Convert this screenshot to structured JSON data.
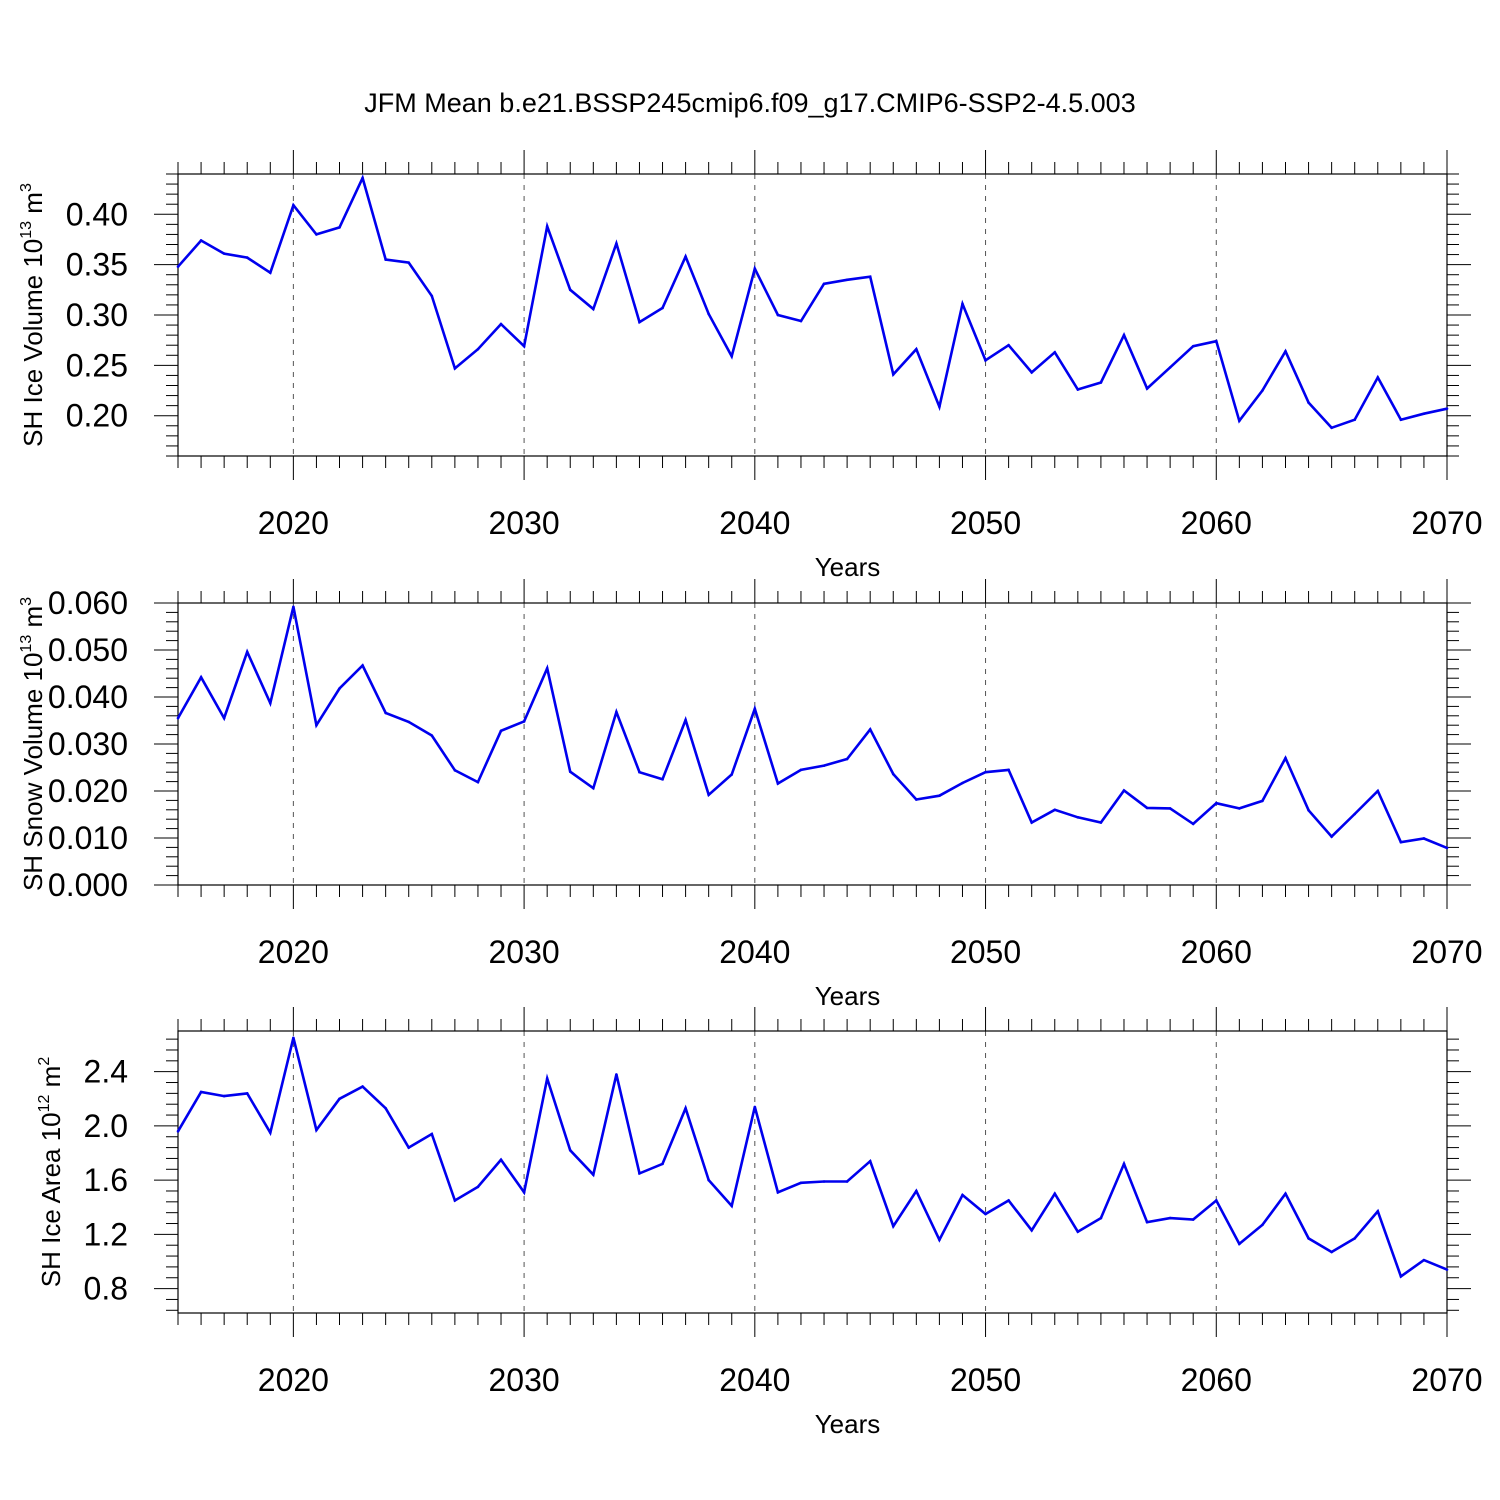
{
  "figure": {
    "title": "JFM Mean b.e21.BSSP245cmip6.f09_g17.CMIP6-SSP2-4.5.003"
  },
  "chart_data": [
    {
      "type": "line",
      "xlabel": "Years",
      "ylabel_prefix": "SH Ice Volume 10",
      "ylabel_exp": "13",
      "ylabel_unit": " m",
      "ylabel_unit_exp": "3",
      "xlim": [
        2015,
        2070
      ],
      "ylim": [
        0.16,
        0.44
      ],
      "x_ticks": [
        2020,
        2030,
        2040,
        2050,
        2060,
        2070
      ],
      "x_tick_labels": [
        "2020",
        "2030",
        "2040",
        "2050",
        "2060",
        "2070"
      ],
      "y_ticks": [
        0.2,
        0.25,
        0.3,
        0.35,
        0.4
      ],
      "y_tick_labels": [
        "0.20",
        "0.25",
        "0.30",
        "0.35",
        "0.40"
      ],
      "grid": "dashed vertical at decades",
      "color": "#0000ee",
      "x": [
        2015,
        2016,
        2017,
        2018,
        2019,
        2020,
        2021,
        2022,
        2023,
        2024,
        2025,
        2026,
        2027,
        2028,
        2029,
        2030,
        2031,
        2032,
        2033,
        2034,
        2035,
        2036,
        2037,
        2038,
        2039,
        2040,
        2041,
        2042,
        2043,
        2044,
        2045,
        2046,
        2047,
        2048,
        2049,
        2050,
        2051,
        2052,
        2053,
        2054,
        2055,
        2056,
        2057,
        2058,
        2059,
        2060,
        2061,
        2062,
        2063,
        2064,
        2065,
        2066,
        2067,
        2068,
        2069,
        2070
      ],
      "values": [
        0.348,
        0.374,
        0.361,
        0.357,
        0.342,
        0.409,
        0.38,
        0.387,
        0.436,
        0.355,
        0.352,
        0.319,
        0.247,
        0.266,
        0.291,
        0.269,
        0.388,
        0.325,
        0.306,
        0.371,
        0.293,
        0.307,
        0.358,
        0.301,
        0.259,
        0.346,
        0.3,
        0.294,
        0.331,
        0.335,
        0.338,
        0.241,
        0.266,
        0.209,
        0.311,
        0.255,
        0.27,
        0.243,
        0.263,
        0.226,
        0.233,
        0.28,
        0.227,
        0.248,
        0.269,
        0.274,
        0.195,
        0.225,
        0.264,
        0.213,
        0.188,
        0.196,
        0.238,
        0.196,
        0.202,
        0.207
      ]
    },
    {
      "type": "line",
      "xlabel": "Years",
      "ylabel_prefix": "SH Snow Volume 10",
      "ylabel_exp": "13",
      "ylabel_unit": " m",
      "ylabel_unit_exp": "3",
      "xlim": [
        2015,
        2070
      ],
      "ylim": [
        0.0,
        0.06
      ],
      "x_ticks": [
        2020,
        2030,
        2040,
        2050,
        2060,
        2070
      ],
      "x_tick_labels": [
        "2020",
        "2030",
        "2040",
        "2050",
        "2060",
        "2070"
      ],
      "y_ticks": [
        0.0,
        0.01,
        0.02,
        0.03,
        0.04,
        0.05,
        0.06
      ],
      "y_tick_labels": [
        "0.000",
        "0.010",
        "0.020",
        "0.030",
        "0.040",
        "0.050",
        "0.060"
      ],
      "grid": "dashed vertical at decades",
      "color": "#0000ee",
      "x": [
        2015,
        2016,
        2017,
        2018,
        2019,
        2020,
        2021,
        2022,
        2023,
        2024,
        2025,
        2026,
        2027,
        2028,
        2029,
        2030,
        2031,
        2032,
        2033,
        2034,
        2035,
        2036,
        2037,
        2038,
        2039,
        2040,
        2041,
        2042,
        2043,
        2044,
        2045,
        2046,
        2047,
        2048,
        2049,
        2050,
        2051,
        2052,
        2053,
        2054,
        2055,
        2056,
        2057,
        2058,
        2059,
        2060,
        2061,
        2062,
        2063,
        2064,
        2065,
        2066,
        2067,
        2068,
        2069,
        2070
      ],
      "values": [
        0.0355,
        0.0442,
        0.0355,
        0.0496,
        0.0387,
        0.0592,
        0.034,
        0.0418,
        0.0467,
        0.0366,
        0.0347,
        0.0318,
        0.0244,
        0.0219,
        0.0328,
        0.0348,
        0.0461,
        0.0241,
        0.0206,
        0.0368,
        0.024,
        0.0225,
        0.0351,
        0.0192,
        0.0235,
        0.0375,
        0.0216,
        0.0245,
        0.0254,
        0.0268,
        0.0331,
        0.0236,
        0.0182,
        0.019,
        0.0217,
        0.024,
        0.0245,
        0.0133,
        0.016,
        0.0144,
        0.0133,
        0.0201,
        0.0164,
        0.0163,
        0.013,
        0.0174,
        0.0163,
        0.0179,
        0.027,
        0.0159,
        0.0103,
        0.0151,
        0.02,
        0.0091,
        0.0099,
        0.0079
      ]
    },
    {
      "type": "line",
      "xlabel": "Years",
      "ylabel_prefix": "SH Ice Area 10",
      "ylabel_exp": "12",
      "ylabel_unit": " m",
      "ylabel_unit_exp": "2",
      "xlim": [
        2015,
        2070
      ],
      "ylim": [
        0.62,
        2.7
      ],
      "x_ticks": [
        2020,
        2030,
        2040,
        2050,
        2060,
        2070
      ],
      "x_tick_labels": [
        "2020",
        "2030",
        "2040",
        "2050",
        "2060",
        "2070"
      ],
      "y_ticks": [
        0.8,
        1.2,
        1.6,
        2.0,
        2.4
      ],
      "y_tick_labels": [
        "0.8",
        "1.2",
        "1.6",
        "2.0",
        "2.4"
      ],
      "grid": "dashed vertical at decades",
      "color": "#0000ee",
      "x": [
        2015,
        2016,
        2017,
        2018,
        2019,
        2020,
        2021,
        2022,
        2023,
        2024,
        2025,
        2026,
        2027,
        2028,
        2029,
        2030,
        2031,
        2032,
        2033,
        2034,
        2035,
        2036,
        2037,
        2038,
        2039,
        2040,
        2041,
        2042,
        2043,
        2044,
        2045,
        2046,
        2047,
        2048,
        2049,
        2050,
        2051,
        2052,
        2053,
        2054,
        2055,
        2056,
        2057,
        2058,
        2059,
        2060,
        2061,
        2062,
        2063,
        2064,
        2065,
        2066,
        2067,
        2068,
        2069,
        2070
      ],
      "values": [
        1.96,
        2.25,
        2.22,
        2.24,
        1.95,
        2.65,
        1.97,
        2.2,
        2.29,
        2.13,
        1.84,
        1.94,
        1.45,
        1.55,
        1.75,
        1.51,
        2.35,
        1.82,
        1.64,
        2.38,
        1.65,
        1.72,
        2.13,
        1.6,
        1.41,
        2.14,
        1.51,
        1.58,
        1.59,
        1.59,
        1.74,
        1.26,
        1.52,
        1.16,
        1.49,
        1.35,
        1.45,
        1.23,
        1.5,
        1.22,
        1.32,
        1.72,
        1.29,
        1.32,
        1.31,
        1.45,
        1.13,
        1.27,
        1.5,
        1.17,
        1.07,
        1.17,
        1.37,
        0.89,
        1.01,
        0.94
      ]
    }
  ]
}
